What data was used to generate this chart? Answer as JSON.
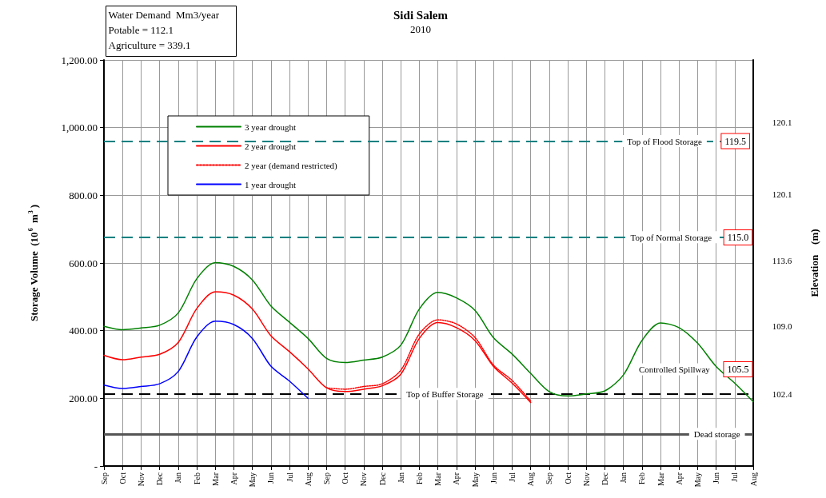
{
  "chart_data": {
    "type": "line",
    "title": "Sidi Salem",
    "subtitle": "2010",
    "ylabel": "Storage Volume  (10$^{6}$ m$^{3}$)",
    "y2label": "Elevation    (m)",
    "categories": [
      "Sep",
      "Oct",
      "Nov",
      "Dec",
      "Jan",
      "Feb",
      "Mar",
      "Apr",
      "May",
      "Jun",
      "Jul",
      "Aug",
      "Sep",
      "Oct",
      "Nov",
      "Dec",
      "Jan",
      "Feb",
      "Mar",
      "Apr",
      "May",
      "Jun",
      "Jul",
      "Aug",
      "Sep",
      "Oct",
      "Nov",
      "Dec",
      "Jan",
      "Feb",
      "Mar",
      "Apr",
      "May",
      "Jun",
      "Jul",
      "Aug"
    ],
    "series": [
      {
        "name": "3 year drought",
        "color": "#008000",
        "values": [
          413,
          403,
          408,
          416,
          452,
          553,
          601,
          590,
          550,
          473,
          425,
          377,
          318,
          306,
          313,
          322,
          357,
          464,
          513,
          497,
          460,
          379,
          331,
          274,
          220,
          207,
          213,
          222,
          269,
          371,
          423,
          409,
          363,
          294,
          245,
          190
        ]
      },
      {
        "name": "2 year drought",
        "color": "#ff0000",
        "values": [
          327,
          314,
          322,
          330,
          365,
          465,
          515,
          505,
          464,
          385,
          338,
          287,
          231,
          220,
          227,
          237,
          271,
          377,
          424,
          409,
          371,
          294,
          245,
          188,
          null,
          null,
          null,
          null,
          null,
          null,
          null,
          null,
          null,
          null,
          null,
          null
        ]
      },
      {
        "name": "2 year (demand restricted)",
        "color": "#ff0000",
        "line_style": "dotted",
        "values": [
          null,
          null,
          null,
          null,
          null,
          null,
          null,
          null,
          null,
          null,
          null,
          null,
          231,
          227,
          235,
          243,
          283,
          390,
          432,
          420,
          380,
          298,
          253,
          192,
          null,
          null,
          null,
          null,
          null,
          null,
          null,
          null,
          null,
          null,
          null,
          null
        ]
      },
      {
        "name": "1 year drought",
        "color": "#0000ff",
        "values": [
          239,
          229,
          235,
          243,
          279,
          381,
          428,
          418,
          377,
          295,
          251,
          200,
          null,
          null,
          null,
          null,
          null,
          null,
          null,
          null,
          null,
          null,
          null,
          null,
          null,
          null,
          null,
          null,
          null,
          null,
          null,
          null,
          null,
          null,
          null,
          null
        ]
      }
    ],
    "ylim": [
      0,
      1200
    ],
    "yticks": [
      {
        "value": 0,
        "label": "-"
      },
      {
        "value": 200,
        "label": "200.00"
      },
      {
        "value": 400,
        "label": "400.00"
      },
      {
        "value": 600,
        "label": "600.00"
      },
      {
        "value": 800,
        "label": "800.00"
      },
      {
        "value": 1000,
        "label": "1,000.00"
      },
      {
        "value": 1200,
        "label": "1,200.00"
      }
    ],
    "ref_lines": [
      {
        "axis": "y",
        "value": 960,
        "label": "Top of Flood Storage",
        "color": "#008080",
        "line_style": "dashed"
      },
      {
        "axis": "y",
        "value": 676,
        "label": "Top of Normal Storage",
        "color": "#008080",
        "line_style": "dashed"
      },
      {
        "axis": "y",
        "value": 213,
        "label": "Top of Buffer Storage",
        "color": "#000000",
        "line_style": "dashed"
      },
      {
        "axis": "y",
        "value": 95,
        "label": "Dead storage",
        "color": "#555555",
        "line_style": "solid"
      }
    ],
    "annotations": [
      "Water Demand  Mm3/year",
      "Potable = 112.1",
      "Agriculture = 339.1",
      "120.1",
      "120.1",
      "113.6",
      "109.0",
      "102.4",
      "119.5",
      "115.0",
      "105.5",
      "Controlled Spillway"
    ],
    "grid": true,
    "legend": "top left",
    "marker": "none",
    "line_style": "solid"
  }
}
